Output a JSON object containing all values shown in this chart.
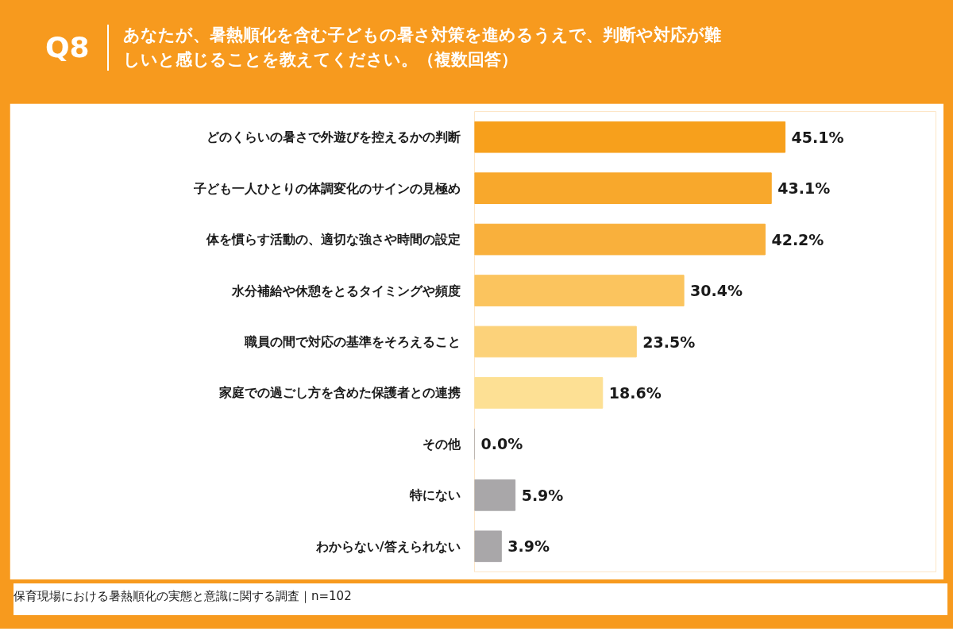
{
  "chart_data": {
    "type": "bar",
    "orientation": "horizontal",
    "title": "Q8",
    "subtitle": "あなたが、暑熱順化を含む子どもの暑さ対策を進めるうえで、判断や対応が難しいと感じることを教えてください。（複数回答）",
    "categories": [
      "どのくらいの暑さで外遊びを控えるかの判断",
      "子ども一人ひとりの体調変化のサインの見極め",
      "体を慣らす活動の、適切な強さや時間の設定",
      "水分補給や休憩をとるタイミングや頻度",
      "職員の間で対応の基準をそろえること",
      "家庭での過ごし方を含めた保護者との連携",
      "その他",
      "特にない",
      "わからない/答えられない"
    ],
    "values": [
      45.1,
      43.1,
      42.2,
      30.4,
      23.5,
      18.6,
      0.0,
      5.9,
      3.9
    ],
    "colors": [
      "#f7a01c",
      "#f8a82c",
      "#f9b03c",
      "#fbc45e",
      "#fcd27a",
      "#fde094",
      "#a9a7a9",
      "#a9a7a9",
      "#a9a7a9"
    ],
    "value_labels": [
      "45.1%",
      "43.1%",
      "42.2%",
      "30.4%",
      "23.5%",
      "18.6%",
      "0.0%",
      "5.9%",
      "3.9%"
    ],
    "xlim": [
      0,
      67
    ],
    "tick_labels": "y",
    "grid": false,
    "annotations": [
      "保育現場における暑熱順化の実態と意識に関する調査｜n=102"
    ]
  }
}
